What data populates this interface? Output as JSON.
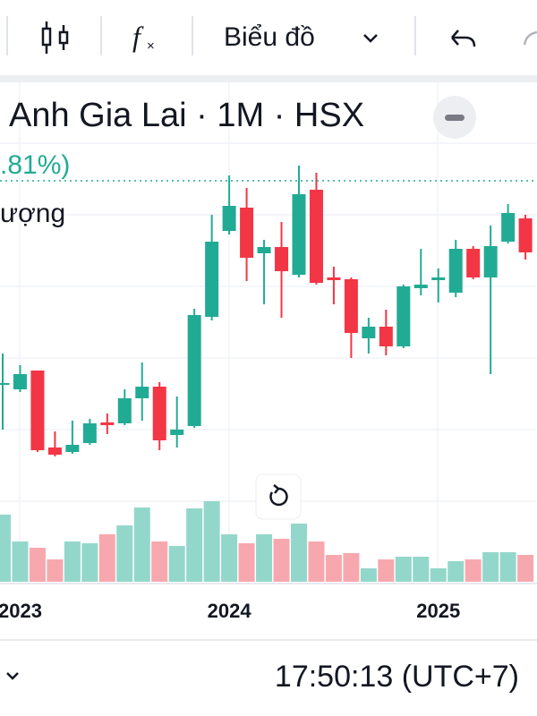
{
  "toolbar": {
    "chart_menu": "Biểu đồ"
  },
  "header": {
    "title": "Anh Gia Lai · 1M · HSX",
    "change": ".81%)",
    "volume_label": "ượng"
  },
  "footer": {
    "time": "17:50:13 (UTC+7)"
  },
  "chart_data": {
    "type": "candlestick",
    "up_color": "#22ab94",
    "down_color": "#f23645",
    "up_volume_color": "#93d7cb",
    "down_volume_color": "#f7a8ae",
    "categories": [
      null,
      "2023",
      null,
      null,
      null,
      null,
      null,
      null,
      null,
      null,
      null,
      null,
      null,
      "2024",
      null,
      null,
      null,
      null,
      null,
      null,
      null,
      null,
      null,
      null,
      null,
      "2025",
      null,
      null,
      null,
      null,
      null
    ],
    "open": [
      170,
      165,
      186,
      100,
      95,
      105,
      128,
      127,
      155,
      168,
      114,
      124,
      246,
      342,
      368,
      317,
      324,
      293,
      388,
      290,
      288,
      222,
      235,
      213,
      278,
      287,
      273,
      322,
      290,
      330,
      356
    ],
    "high": [
      205,
      192,
      186,
      118,
      130,
      132,
      138,
      165,
      195,
      173,
      157,
      255,
      360,
      404,
      390,
      332,
      352,
      415,
      407,
      302,
      290,
      245,
      254,
      282,
      322,
      300,
      332,
      325,
      348,
      372,
      360
    ],
    "low": [
      120,
      162,
      95,
      90,
      93,
      103,
      115,
      125,
      130,
      97,
      100,
      122,
      242,
      338,
      286,
      260,
      245,
      290,
      282,
      260,
      200,
      205,
      203,
      211,
      270,
      262,
      268,
      288,
      182,
      328,
      310
    ],
    "close": [
      172,
      182,
      97,
      92,
      103,
      127,
      125,
      155,
      168,
      108,
      120,
      248,
      330,
      370,
      312,
      324,
      297,
      383,
      284,
      287,
      228,
      235,
      213,
      280,
      282,
      290,
      322,
      290,
      325,
      362,
      318
    ],
    "volume": [
      75,
      45,
      38,
      25,
      45,
      43,
      53,
      63,
      83,
      45,
      40,
      82,
      90,
      53,
      43,
      53,
      48,
      65,
      45,
      30,
      32,
      15,
      25,
      28,
      28,
      15,
      23,
      25,
      33,
      33,
      30
    ]
  }
}
